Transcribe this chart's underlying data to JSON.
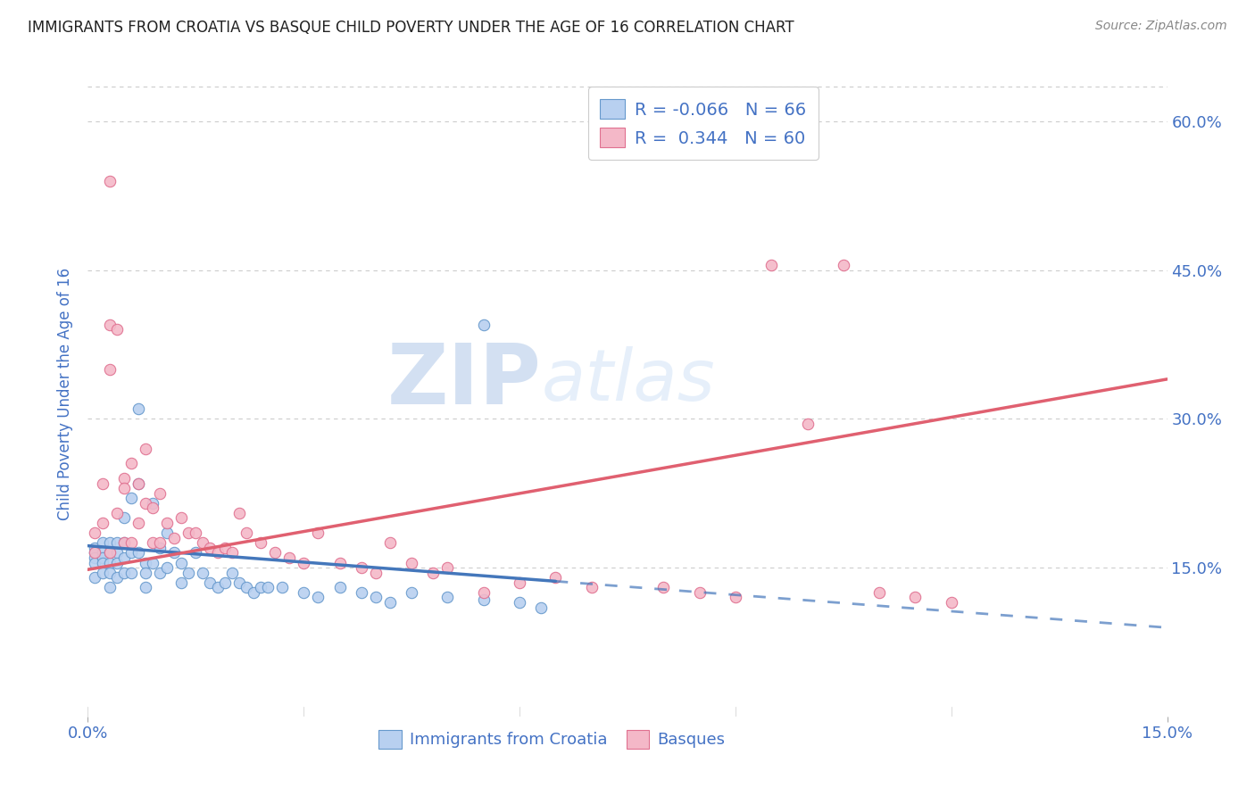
{
  "title": "IMMIGRANTS FROM CROATIA VS BASQUE CHILD POVERTY UNDER THE AGE OF 16 CORRELATION CHART",
  "source": "Source: ZipAtlas.com",
  "ylabel": "Child Poverty Under the Age of 16",
  "xlim": [
    0.0,
    0.15
  ],
  "ylim": [
    0.0,
    0.65
  ],
  "ytick_values": [
    0.15,
    0.3,
    0.45,
    0.6
  ],
  "ytick_labels": [
    "15.0%",
    "30.0%",
    "45.0%",
    "60.0%"
  ],
  "xtick_values": [
    0.0,
    0.15
  ],
  "xtick_labels": [
    "0.0%",
    "15.0%"
  ],
  "series1_color": "#b8d0f0",
  "series2_color": "#f4b8c8",
  "series1_edge": "#6699cc",
  "series2_edge": "#e07090",
  "trend1_color": "#4477bb",
  "trend2_color": "#e06070",
  "background": "#ffffff",
  "grid_color": "#cccccc",
  "axis_label_color": "#4472c4",
  "title_color": "#222222",
  "source_color": "#888888",
  "series1_R": -0.066,
  "series1_N": 66,
  "series2_R": 0.344,
  "series2_N": 60,
  "trend1_intercept": 0.172,
  "trend1_slope": -0.55,
  "trend2_intercept": 0.148,
  "trend2_slope": 1.28,
  "trend1_solid_end": 0.065,
  "watermark_text": "ZIPatlas",
  "legend_label1": "R = -0.066   N = 66",
  "legend_label2": "R =  0.344   N = 60",
  "bottom_label1": "Immigrants from Croatia",
  "bottom_label2": "Basques",
  "series1_x": [
    0.001,
    0.001,
    0.001,
    0.001,
    0.001,
    0.002,
    0.002,
    0.002,
    0.002,
    0.002,
    0.003,
    0.003,
    0.003,
    0.003,
    0.003,
    0.004,
    0.004,
    0.004,
    0.004,
    0.005,
    0.005,
    0.005,
    0.005,
    0.006,
    0.006,
    0.006,
    0.007,
    0.007,
    0.007,
    0.008,
    0.008,
    0.008,
    0.009,
    0.009,
    0.01,
    0.01,
    0.011,
    0.011,
    0.012,
    0.013,
    0.013,
    0.014,
    0.015,
    0.016,
    0.017,
    0.018,
    0.019,
    0.02,
    0.021,
    0.022,
    0.023,
    0.024,
    0.025,
    0.027,
    0.03,
    0.032,
    0.035,
    0.038,
    0.04,
    0.042,
    0.045,
    0.05,
    0.055,
    0.06,
    0.063,
    0.055
  ],
  "series1_y": [
    0.17,
    0.165,
    0.16,
    0.155,
    0.14,
    0.175,
    0.165,
    0.16,
    0.155,
    0.145,
    0.175,
    0.165,
    0.155,
    0.145,
    0.13,
    0.175,
    0.165,
    0.155,
    0.14,
    0.2,
    0.175,
    0.16,
    0.145,
    0.22,
    0.165,
    0.145,
    0.31,
    0.235,
    0.165,
    0.155,
    0.145,
    0.13,
    0.215,
    0.155,
    0.17,
    0.145,
    0.185,
    0.15,
    0.165,
    0.155,
    0.135,
    0.145,
    0.165,
    0.145,
    0.135,
    0.13,
    0.135,
    0.145,
    0.135,
    0.13,
    0.125,
    0.13,
    0.13,
    0.13,
    0.125,
    0.12,
    0.13,
    0.125,
    0.12,
    0.115,
    0.125,
    0.12,
    0.118,
    0.115,
    0.11,
    0.395
  ],
  "series2_x": [
    0.001,
    0.001,
    0.002,
    0.002,
    0.003,
    0.003,
    0.003,
    0.004,
    0.004,
    0.005,
    0.005,
    0.005,
    0.006,
    0.006,
    0.007,
    0.007,
    0.008,
    0.008,
    0.009,
    0.009,
    0.01,
    0.01,
    0.011,
    0.012,
    0.013,
    0.014,
    0.015,
    0.016,
    0.017,
    0.018,
    0.019,
    0.02,
    0.021,
    0.022,
    0.024,
    0.026,
    0.028,
    0.03,
    0.032,
    0.035,
    0.038,
    0.04,
    0.042,
    0.045,
    0.048,
    0.05,
    0.055,
    0.06,
    0.065,
    0.07,
    0.08,
    0.085,
    0.09,
    0.095,
    0.1,
    0.105,
    0.11,
    0.115,
    0.12,
    0.003
  ],
  "series2_y": [
    0.185,
    0.165,
    0.235,
    0.195,
    0.395,
    0.35,
    0.165,
    0.39,
    0.205,
    0.24,
    0.23,
    0.175,
    0.255,
    0.175,
    0.235,
    0.195,
    0.27,
    0.215,
    0.21,
    0.175,
    0.225,
    0.175,
    0.195,
    0.18,
    0.2,
    0.185,
    0.185,
    0.175,
    0.17,
    0.165,
    0.17,
    0.165,
    0.205,
    0.185,
    0.175,
    0.165,
    0.16,
    0.155,
    0.185,
    0.155,
    0.15,
    0.145,
    0.175,
    0.155,
    0.145,
    0.15,
    0.125,
    0.135,
    0.14,
    0.13,
    0.13,
    0.125,
    0.12,
    0.455,
    0.295,
    0.455,
    0.125,
    0.12,
    0.115,
    0.54
  ]
}
